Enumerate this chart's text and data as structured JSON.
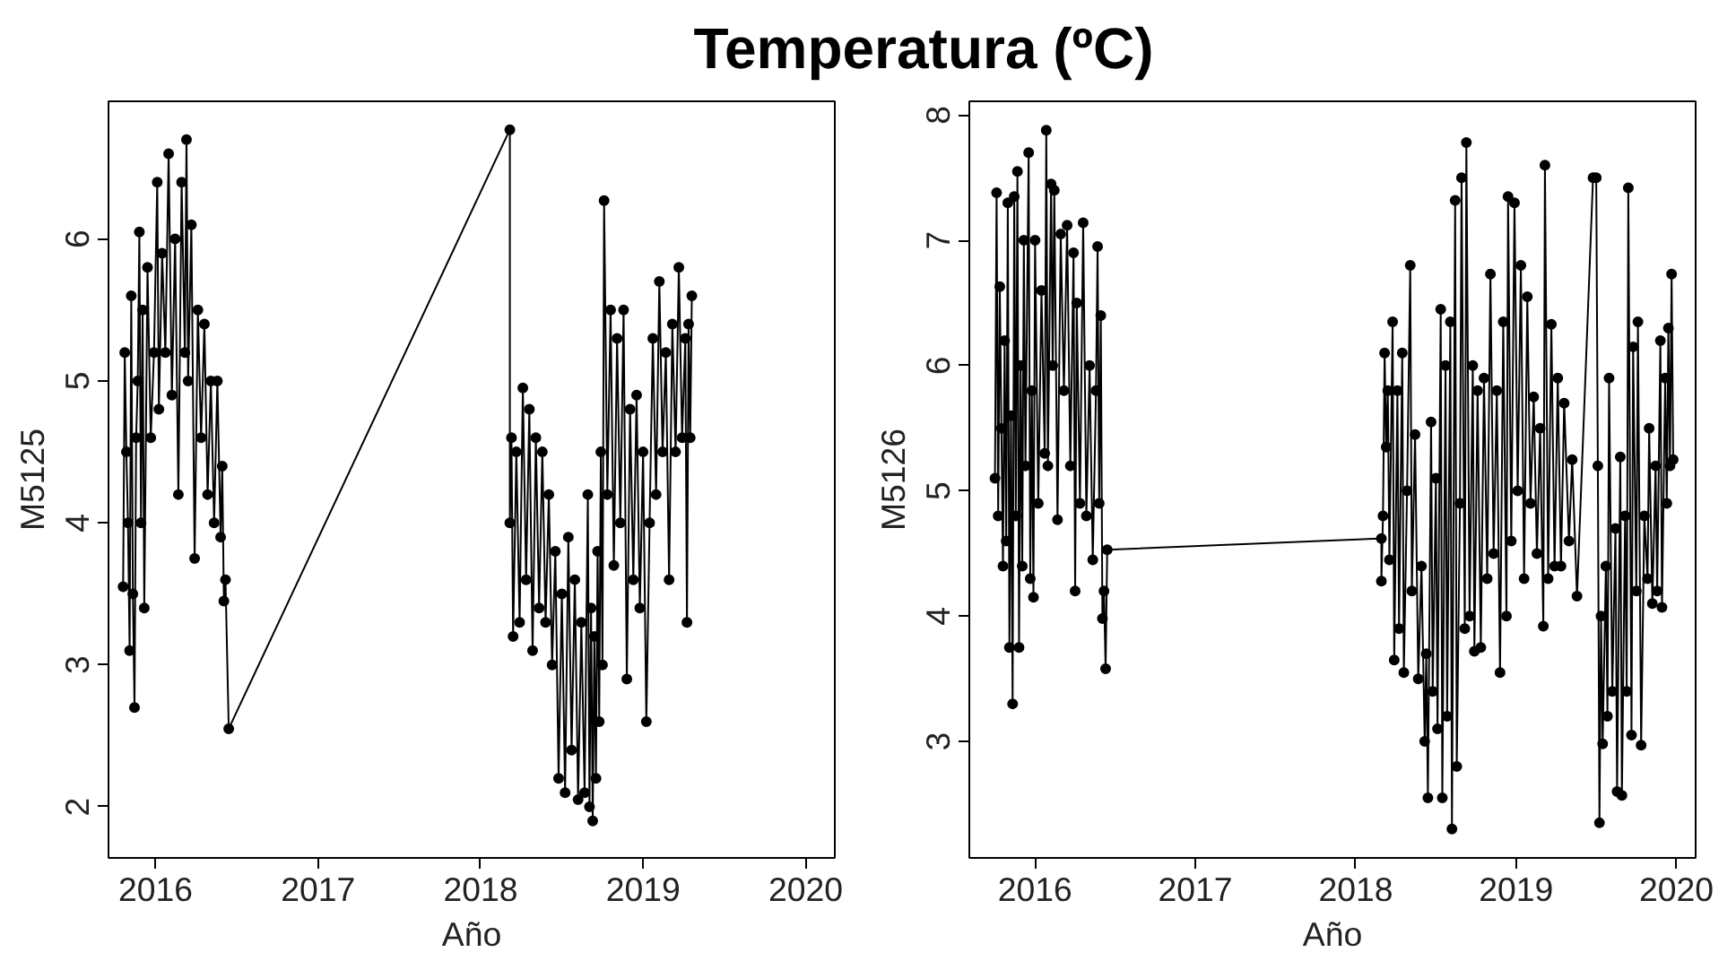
{
  "chart_data": [
    {
      "type": "line",
      "title": "Temperatura (ºC)",
      "xlabel": "Año",
      "ylabel": "M5125",
      "color": "#000000",
      "marker": "circle",
      "line_style": "solid",
      "xlim": [
        2015.71,
        2020.18
      ],
      "ylim": [
        1.64,
        6.97
      ],
      "xticks": [
        2016,
        2017,
        2018,
        2019,
        2020
      ],
      "yticks": [
        2,
        3,
        4,
        5,
        6
      ],
      "x": [
        2015.8,
        2015.81,
        2015.82,
        2015.83,
        2015.84,
        2015.85,
        2015.86,
        2015.87,
        2015.88,
        2015.89,
        2015.9,
        2015.91,
        2015.92,
        2015.93,
        2015.95,
        2015.97,
        2015.99,
        2016.01,
        2016.02,
        2016.04,
        2016.06,
        2016.08,
        2016.1,
        2016.12,
        2016.14,
        2016.16,
        2016.18,
        2016.19,
        2016.2,
        2016.22,
        2016.24,
        2016.26,
        2016.28,
        2016.3,
        2016.32,
        2016.34,
        2016.36,
        2016.38,
        2016.4,
        2016.41,
        2016.42,
        2016.43,
        2016.45,
        2018.18,
        2018.18,
        2018.19,
        2018.2,
        2018.22,
        2018.24,
        2018.26,
        2018.28,
        2018.3,
        2018.32,
        2018.34,
        2018.36,
        2018.38,
        2018.4,
        2018.42,
        2018.44,
        2018.46,
        2018.48,
        2018.5,
        2018.52,
        2018.54,
        2018.56,
        2018.58,
        2018.6,
        2018.62,
        2018.64,
        2018.66,
        2018.67,
        2018.68,
        2018.69,
        2018.7,
        2018.71,
        2018.72,
        2018.73,
        2018.74,
        2018.75,
        2018.76,
        2018.78,
        2018.8,
        2018.82,
        2018.84,
        2018.86,
        2018.88,
        2018.9,
        2018.92,
        2018.94,
        2018.96,
        2018.98,
        2019.0,
        2019.02,
        2019.04,
        2019.06,
        2019.08,
        2019.1,
        2019.12,
        2019.14,
        2019.16,
        2019.18,
        2019.2,
        2019.22,
        2019.24,
        2019.26,
        2019.27,
        2019.28,
        2019.29,
        2019.3
      ],
      "values": [
        3.55,
        5.2,
        4.5,
        4.0,
        3.1,
        5.6,
        3.5,
        2.7,
        4.6,
        5.0,
        6.05,
        4.0,
        5.5,
        3.4,
        5.8,
        4.6,
        5.2,
        6.4,
        4.8,
        5.9,
        5.2,
        6.6,
        4.9,
        6.0,
        4.2,
        6.4,
        5.2,
        6.7,
        5.0,
        6.1,
        3.75,
        5.5,
        4.6,
        5.4,
        4.2,
        5.0,
        4.0,
        5.0,
        3.9,
        4.4,
        3.45,
        3.6,
        2.55,
        6.77,
        4.0,
        4.6,
        3.2,
        4.5,
        3.3,
        4.95,
        3.6,
        4.8,
        3.1,
        4.6,
        3.4,
        4.5,
        3.3,
        4.2,
        3.0,
        3.8,
        2.2,
        3.5,
        2.1,
        3.9,
        2.4,
        3.6,
        2.05,
        3.3,
        2.1,
        4.2,
        2.0,
        3.4,
        1.9,
        3.2,
        2.2,
        3.8,
        2.6,
        4.5,
        3.0,
        6.27,
        4.2,
        5.5,
        3.7,
        5.3,
        4.0,
        5.5,
        2.9,
        4.8,
        3.6,
        4.9,
        3.4,
        4.5,
        2.6,
        4.0,
        5.3,
        4.2,
        5.7,
        4.5,
        5.2,
        3.6,
        5.4,
        4.5,
        5.8,
        4.6,
        5.3,
        3.3,
        5.4,
        4.6,
        5.6
      ]
    },
    {
      "type": "line",
      "xlabel": "Año",
      "ylabel": "M5126",
      "color": "#000000",
      "marker": "circle",
      "line_style": "solid",
      "xlim": [
        2015.59,
        2020.12
      ],
      "ylim": [
        2.07,
        8.11
      ],
      "xticks": [
        2016,
        2017,
        2018,
        2019,
        2020
      ],
      "yticks": [
        3,
        4,
        5,
        6,
        7,
        8
      ],
      "x": [
        2015.75,
        2015.76,
        2015.77,
        2015.78,
        2015.79,
        2015.8,
        2015.81,
        2015.82,
        2015.83,
        2015.84,
        2015.85,
        2015.86,
        2015.87,
        2015.88,
        2015.89,
        2015.9,
        2015.91,
        2015.92,
        2015.93,
        2015.94,
        2015.96,
        2015.97,
        2015.98,
        2015.99,
        2016.0,
        2016.02,
        2016.04,
        2016.06,
        2016.07,
        2016.08,
        2016.1,
        2016.11,
        2016.12,
        2016.14,
        2016.16,
        2016.18,
        2016.2,
        2016.22,
        2016.24,
        2016.25,
        2016.26,
        2016.28,
        2016.3,
        2016.32,
        2016.34,
        2016.36,
        2016.38,
        2016.39,
        2016.4,
        2016.41,
        2016.42,
        2016.43,
        2016.44,
        2016.45,
        2018.16,
        2018.16,
        2018.17,
        2018.18,
        2018.19,
        2018.2,
        2018.21,
        2018.23,
        2018.24,
        2018.26,
        2018.27,
        2018.29,
        2018.3,
        2018.32,
        2018.34,
        2018.35,
        2018.37,
        2018.39,
        2018.41,
        2018.43,
        2018.44,
        2018.45,
        2018.47,
        2018.48,
        2018.5,
        2018.51,
        2018.53,
        2018.54,
        2018.56,
        2018.57,
        2018.59,
        2018.6,
        2018.62,
        2018.63,
        2018.65,
        2018.66,
        2018.68,
        2018.69,
        2018.71,
        2018.73,
        2018.74,
        2018.76,
        2018.78,
        2018.8,
        2018.82,
        2018.84,
        2018.86,
        2018.88,
        2018.9,
        2018.92,
        2018.94,
        2018.95,
        2018.97,
        2018.99,
        2019.01,
        2019.03,
        2019.05,
        2019.07,
        2019.09,
        2019.11,
        2019.13,
        2019.15,
        2019.17,
        2019.18,
        2019.2,
        2019.22,
        2019.24,
        2019.26,
        2019.28,
        2019.3,
        2019.33,
        2019.35,
        2019.38,
        2019.48,
        2019.5,
        2019.51,
        2019.52,
        2019.53,
        2019.54,
        2019.56,
        2019.57,
        2019.58,
        2019.6,
        2019.62,
        2019.63,
        2019.65,
        2019.66,
        2019.68,
        2019.69,
        2019.7,
        2019.72,
        2019.73,
        2019.75,
        2019.76,
        2019.78,
        2019.8,
        2019.82,
        2019.83,
        2019.85,
        2019.87,
        2019.88,
        2019.9,
        2019.91,
        2019.93,
        2019.94,
        2019.95,
        2019.96,
        2019.97,
        2019.98
      ],
      "values": [
        5.1,
        7.38,
        4.8,
        6.63,
        5.5,
        4.4,
        6.2,
        4.6,
        7.3,
        3.75,
        5.6,
        3.3,
        7.35,
        4.8,
        7.55,
        3.75,
        6.0,
        4.4,
        7.0,
        5.2,
        7.7,
        4.3,
        5.8,
        4.15,
        7.0,
        4.9,
        6.6,
        5.3,
        7.88,
        5.2,
        7.45,
        6.0,
        7.4,
        4.77,
        7.05,
        5.8,
        7.12,
        5.2,
        6.9,
        4.2,
        6.5,
        4.9,
        7.14,
        4.8,
        6.0,
        4.45,
        5.8,
        6.95,
        4.9,
        6.4,
        3.98,
        4.2,
        3.58,
        4.53,
        4.62,
        4.28,
        4.8,
        6.1,
        5.35,
        5.8,
        4.45,
        6.35,
        3.65,
        5.8,
        3.9,
        6.1,
        3.55,
        5.0,
        6.8,
        4.2,
        5.45,
        3.5,
        4.4,
        3.0,
        3.7,
        2.55,
        5.55,
        3.4,
        5.1,
        3.1,
        6.45,
        2.55,
        6.0,
        3.2,
        6.35,
        2.3,
        7.32,
        2.8,
        4.9,
        7.5,
        3.9,
        7.78,
        4.0,
        6.0,
        3.72,
        5.8,
        3.75,
        5.9,
        4.3,
        6.73,
        4.5,
        5.8,
        3.55,
        6.35,
        4.0,
        7.35,
        4.6,
        7.3,
        5.0,
        6.8,
        4.3,
        6.55,
        4.9,
        5.75,
        4.5,
        5.5,
        3.92,
        7.6,
        4.3,
        6.33,
        4.4,
        5.9,
        4.4,
        5.7,
        4.6,
        5.25,
        4.16,
        7.5,
        7.5,
        5.2,
        2.35,
        4.0,
        2.98,
        4.4,
        3.2,
        5.9,
        3.4,
        4.7,
        2.6,
        5.27,
        2.57,
        4.8,
        3.4,
        7.42,
        3.05,
        6.15,
        4.2,
        6.35,
        2.97,
        4.8,
        4.3,
        5.5,
        4.1,
        5.2,
        4.2,
        6.2,
        4.07,
        5.9,
        4.9,
        6.3,
        5.2,
        6.73,
        5.25
      ]
    }
  ]
}
